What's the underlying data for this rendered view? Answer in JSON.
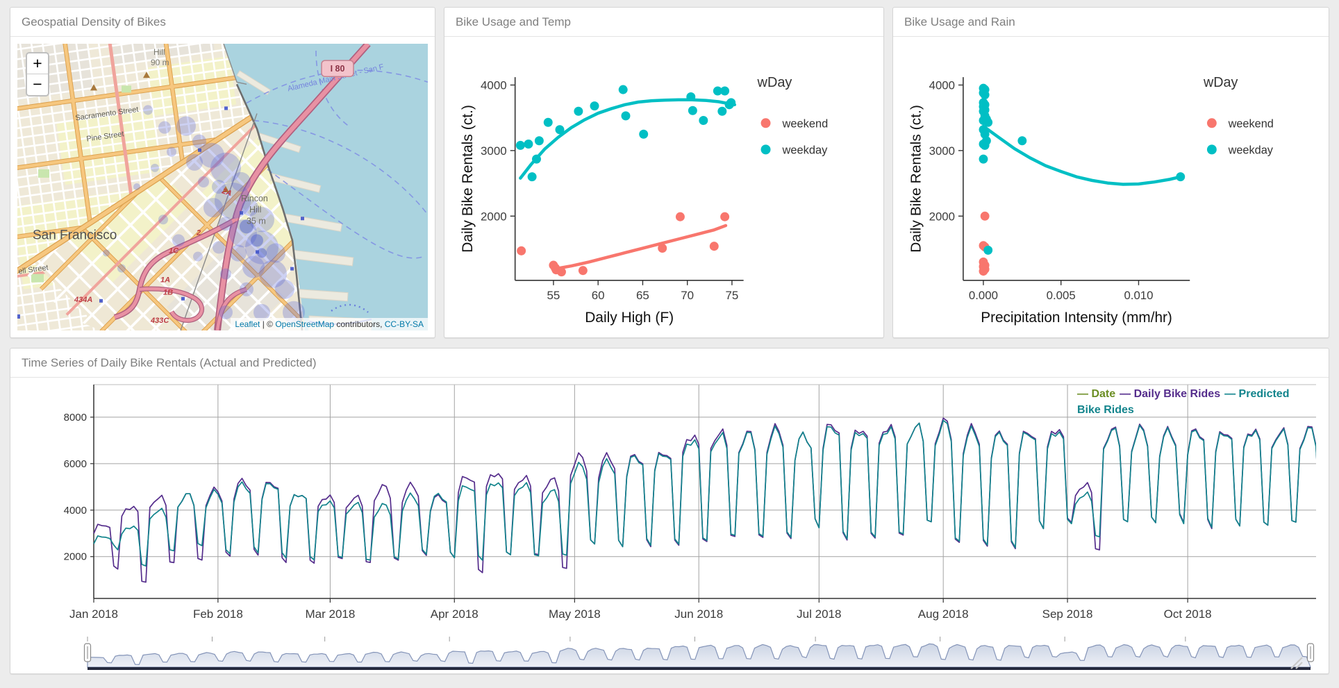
{
  "panels": {
    "map": {
      "title": "Geospatial Density of Bikes",
      "zoom_in": "+",
      "zoom_out": "−",
      "attribution": {
        "leaflet": "Leaflet",
        "sep": " | © ",
        "osm": "OpenStreetMap",
        "contributors": " contributors, ",
        "license": "CC-BY-SA"
      },
      "labels": {
        "city": "San Francisco",
        "hill": "Hill",
        "hill_elev": "90 m",
        "rincon1": "Rincon",
        "rincon2": "Hill",
        "rincon3": "35 m",
        "i80": "I 80",
        "sacramento": "Sacramento Street",
        "pine": "Pine Street",
        "fell": "ell Street",
        "alameda": "Alameda Main Street - San F",
        "r2a": "2A",
        "r2": "2",
        "r1c": "1C",
        "r1a": "1A",
        "r1b": "1B",
        "r434a": "434A",
        "r433c": "433C"
      }
    },
    "temp_title": "Bike Usage and Temp",
    "rain_title": "Bike Usage and Rain",
    "ts_title": "Time Series of Daily Bike Rentals (Actual and Predicted)"
  },
  "chart_data": [
    {
      "id": "temp",
      "type": "scatter",
      "title": "Bike Usage and Temp",
      "xlabel": "Daily High (F)",
      "ylabel": "Daily Bike Rentals (ct.)",
      "xlim": [
        50.7,
        76.3
      ],
      "ylim": [
        1020,
        4120
      ],
      "xticks": [
        55,
        60,
        65,
        70,
        75
      ],
      "yticks": [
        2000,
        3000,
        4000
      ],
      "legend": {
        "title": "wDay",
        "items": [
          {
            "label": "weekend",
            "color": "#F8766D"
          },
          {
            "label": "weekday",
            "color": "#00BFC4"
          }
        ]
      },
      "series": [
        {
          "name": "weekend",
          "color": "#F8766D",
          "points": [
            [
              51.4,
              1470
            ],
            [
              55.0,
              1250
            ],
            [
              55.2,
              1210
            ],
            [
              55.3,
              1180
            ],
            [
              55.9,
              1150
            ],
            [
              58.3,
              1170
            ],
            [
              67.2,
              1510
            ],
            [
              69.2,
              1990
            ],
            [
              73.0,
              1540
            ],
            [
              74.2,
              1990
            ]
          ],
          "smooth": [
            [
              55.2,
              1195
            ],
            [
              57,
              1240
            ],
            [
              59,
              1300
            ],
            [
              61,
              1370
            ],
            [
              63,
              1440
            ],
            [
              65,
              1510
            ],
            [
              67,
              1580
            ],
            [
              69,
              1650
            ],
            [
              71,
              1720
            ],
            [
              73,
              1790
            ],
            [
              74.3,
              1855
            ]
          ]
        },
        {
          "name": "weekday",
          "color": "#00BFC4",
          "points": [
            [
              51.3,
              3080
            ],
            [
              52.2,
              3100
            ],
            [
              52.6,
              2600
            ],
            [
              53.1,
              2870
            ],
            [
              53.4,
              3150
            ],
            [
              54.4,
              3430
            ],
            [
              55.7,
              3320
            ],
            [
              57.8,
              3600
            ],
            [
              59.6,
              3680
            ],
            [
              62.8,
              3930
            ],
            [
              63.1,
              3530
            ],
            [
              65.1,
              3250
            ],
            [
              70.4,
              3820
            ],
            [
              70.6,
              3610
            ],
            [
              71.8,
              3460
            ],
            [
              73.4,
              3910
            ],
            [
              73.9,
              3600
            ],
            [
              74.2,
              3910
            ],
            [
              74.7,
              3700
            ],
            [
              74.9,
              3730
            ]
          ],
          "smooth": [
            [
              51.3,
              2580
            ],
            [
              52.5,
              2790
            ],
            [
              54,
              3020
            ],
            [
              55.5,
              3200
            ],
            [
              57,
              3350
            ],
            [
              58.5,
              3470
            ],
            [
              60,
              3570
            ],
            [
              61.5,
              3640
            ],
            [
              63,
              3700
            ],
            [
              64.5,
              3740
            ],
            [
              66,
              3760
            ],
            [
              67.5,
              3770
            ],
            [
              69,
              3775
            ],
            [
              70.5,
              3775
            ],
            [
              72,
              3765
            ],
            [
              73.5,
              3745
            ],
            [
              74.5,
              3720
            ],
            [
              75.3,
              3700
            ]
          ]
        }
      ]
    },
    {
      "id": "rain",
      "type": "scatter",
      "title": "Bike Usage and Rain",
      "xlabel": "Precipitation Intensity (mm/hr)",
      "ylabel": "Daily Bike Rentals (ct.)",
      "xlim": [
        -0.0013,
        0.0133
      ],
      "ylim": [
        1020,
        4120
      ],
      "xticks": [
        0.0,
        0.005,
        0.01
      ],
      "yticks": [
        2000,
        3000,
        4000
      ],
      "xtick_decimals": 3,
      "legend": {
        "title": "wDay",
        "items": [
          {
            "label": "weekend",
            "color": "#F8766D"
          },
          {
            "label": "weekday",
            "color": "#00BFC4"
          }
        ]
      },
      "series": [
        {
          "name": "weekend",
          "color": "#F8766D",
          "points": [
            [
              0.0001,
              2000
            ],
            [
              0.0,
              1550
            ],
            [
              0.0001,
              1530
            ],
            [
              0.0,
              1300
            ],
            [
              0.0001,
              1250
            ],
            [
              0.0,
              1230
            ],
            [
              0.0001,
              1190
            ],
            [
              0.0,
              1160
            ]
          ],
          "smooth": []
        },
        {
          "name": "weekday",
          "color": "#00BFC4",
          "points": [
            [
              0.0,
              3950
            ],
            [
              0.0001,
              3930
            ],
            [
              0.0,
              3880
            ],
            [
              0.0001,
              3850
            ],
            [
              0.0,
              3730
            ],
            [
              0.0001,
              3700
            ],
            [
              0.0,
              3670
            ],
            [
              0.0001,
              3620
            ],
            [
              0.0,
              3600
            ],
            [
              0.0001,
              3530
            ],
            [
              0.0002,
              3480
            ],
            [
              0.0,
              3460
            ],
            [
              0.0003,
              3430
            ],
            [
              0.0,
              3320
            ],
            [
              0.0001,
              3250
            ],
            [
              0.0002,
              3150
            ],
            [
              0.0,
              3100
            ],
            [
              0.0001,
              3080
            ],
            [
              0.0,
              2870
            ],
            [
              0.0025,
              3150
            ],
            [
              0.0127,
              2600
            ],
            [
              0.0003,
              1480
            ]
          ],
          "smooth": [
            [
              0.0,
              3370
            ],
            [
              0.001,
              3200
            ],
            [
              0.002,
              3030
            ],
            [
              0.003,
              2890
            ],
            [
              0.004,
              2770
            ],
            [
              0.005,
              2680
            ],
            [
              0.006,
              2600
            ],
            [
              0.007,
              2545
            ],
            [
              0.008,
              2505
            ],
            [
              0.009,
              2485
            ],
            [
              0.01,
              2490
            ],
            [
              0.011,
              2520
            ],
            [
              0.012,
              2560
            ],
            [
              0.0127,
              2600
            ]
          ]
        }
      ]
    },
    {
      "id": "timeseries",
      "type": "line",
      "title": "Time Series of Daily Bike Rentals (Actual and Predicted)",
      "x_tick_labels": [
        "Jan 2018",
        "Feb 2018",
        "Mar 2018",
        "Apr 2018",
        "May 2018",
        "Jun 2018",
        "Jul 2018",
        "Aug 2018",
        "Sep 2018",
        "Oct 2018"
      ],
      "month_start_days": [
        0,
        31,
        59,
        90,
        120,
        151,
        181,
        212,
        243,
        273
      ],
      "yticks": [
        2000,
        4000,
        6000,
        8000
      ],
      "ylim": [
        200,
        9400
      ],
      "days_shown": 308,
      "legend": [
        {
          "swatch": "—",
          "label": "Date",
          "color": "#6B8E23"
        },
        {
          "swatch": "—",
          "label": "Daily Bike Rides",
          "color": "#552D8C"
        },
        {
          "swatch": "—",
          "label": "Predicted Bike Rides",
          "color": "#12848C"
        }
      ],
      "series": [
        {
          "name": "Daily Bike Rides",
          "color": "#552D8C",
          "weekly_peaks": [
            3400,
            4150,
            4550,
            4650,
            4850,
            5250,
            5200,
            4700,
            4600,
            4550,
            5000,
            5050,
            4600,
            5450,
            5600,
            5400,
            5300,
            6300,
            6300,
            6350,
            6500,
            7200,
            7350,
            7300,
            7500,
            7200,
            7700,
            7500,
            7600,
            7600,
            7800,
            7500,
            7300,
            7400,
            7500,
            5100,
            7450,
            7500,
            7400,
            7450,
            7400,
            7450,
            7400,
            7500
          ],
          "weekly_troughs": [
            1500,
            900,
            1700,
            1800,
            2000,
            2100,
            1800,
            1750,
            1900,
            1700,
            1800,
            2050,
            2000,
            1350,
            2100,
            2050,
            1450,
            2500,
            2450,
            2500,
            2550,
            2650,
            2800,
            2750,
            2750,
            3300,
            2800,
            2850,
            2900,
            3400,
            2550,
            2450,
            2400,
            3300,
            3500,
            2250,
            3400,
            3400,
            3500,
            3300,
            3400,
            3350,
            3400,
            3450
          ]
        },
        {
          "name": "Predicted Bike Rides",
          "color": "#12848C",
          "weekly_peaks": [
            2900,
            3300,
            4000,
            4650,
            4750,
            5100,
            5150,
            4700,
            4350,
            4250,
            4200,
            4600,
            4650,
            5050,
            5200,
            5100,
            4800,
            5900,
            6050,
            6300,
            6450,
            7000,
            7200,
            7250,
            7400,
            7200,
            7600,
            7400,
            7500,
            7600,
            7700,
            7400,
            7250,
            7350,
            7400,
            4700,
            7400,
            7450,
            7350,
            7400,
            7350,
            7400,
            7350,
            7450
          ],
          "weekly_troughs": [
            2350,
            1600,
            2200,
            2400,
            2100,
            2200,
            2000,
            1900,
            1950,
            1800,
            1850,
            2100,
            2000,
            1900,
            2100,
            2000,
            2000,
            2500,
            2450,
            2550,
            2600,
            2700,
            2850,
            2800,
            2800,
            3300,
            2850,
            2900,
            2950,
            3400,
            2600,
            2500,
            2450,
            3300,
            3450,
            2800,
            3400,
            3400,
            3450,
            3350,
            3400,
            3350,
            3400,
            3400
          ]
        }
      ],
      "range_selector": {
        "fill_top": "#ccd4e4",
        "fill_bottom": "#eef1f7",
        "stroke": "#8494b8",
        "baseline_color": "#252a3e"
      },
      "grid_color": "#a3a3a3"
    }
  ]
}
